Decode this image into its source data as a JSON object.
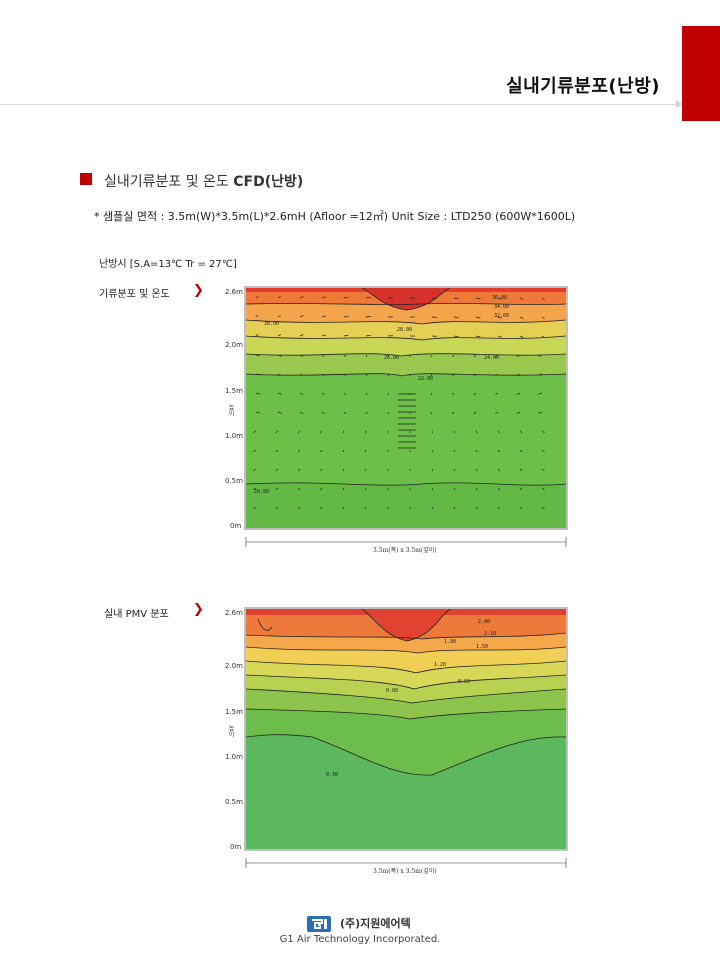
{
  "header": {
    "title": "실내기류분포(난방)",
    "accent_color": "#c00000"
  },
  "section": {
    "title_ko": "실내기류분포 및 온도",
    "title_cfd": "CFD(난방)",
    "spec": "* 샘플실 면적 : 3.5m(W)*3.5m(L)*2.6mH (Afloor =12㎡) Unit Size : LTD250 (600W*1600L)",
    "condition": "난방시 [S.A=13℃ Tr = 27℃]"
  },
  "charts": [
    {
      "label": "기류분포 및 온도",
      "y_ticks": [
        "2.6m",
        "2.0m",
        "1.5m",
        "1.0m",
        "0.5m",
        "0m"
      ],
      "y_axis_label": "높이",
      "x_dim_label": "3.5m(폭) x 3.5m(깊이)",
      "contour_labels": [
        "36.00",
        "34.00",
        "32.00",
        "30.00",
        "28.00",
        "26.00",
        "24.00",
        "22.00",
        "20.00"
      ],
      "field_type": "temperature"
    },
    {
      "label": "실내 PMV 분포",
      "y_ticks": [
        "2.6m",
        "2.0m",
        "1.5m",
        "1.0m",
        "0.5m",
        "0m"
      ],
      "y_axis_label": "높이",
      "x_dim_label": "3.5m(폭) x 3.5m(깊이)",
      "contour_labels": [
        "2.40",
        "2.10",
        "1.90",
        "1.50",
        "1.20",
        "0.80",
        "0.60",
        "0.30"
      ],
      "field_type": "pmv"
    }
  ],
  "footer": {
    "company_ko": "(주)지원에어텍",
    "company_en": "G1 Air Technology Incorporated."
  },
  "icons": {
    "bullet": "red-square-icon",
    "chevron": "chevron-right-icon",
    "logo": "g1-logo-icon"
  }
}
